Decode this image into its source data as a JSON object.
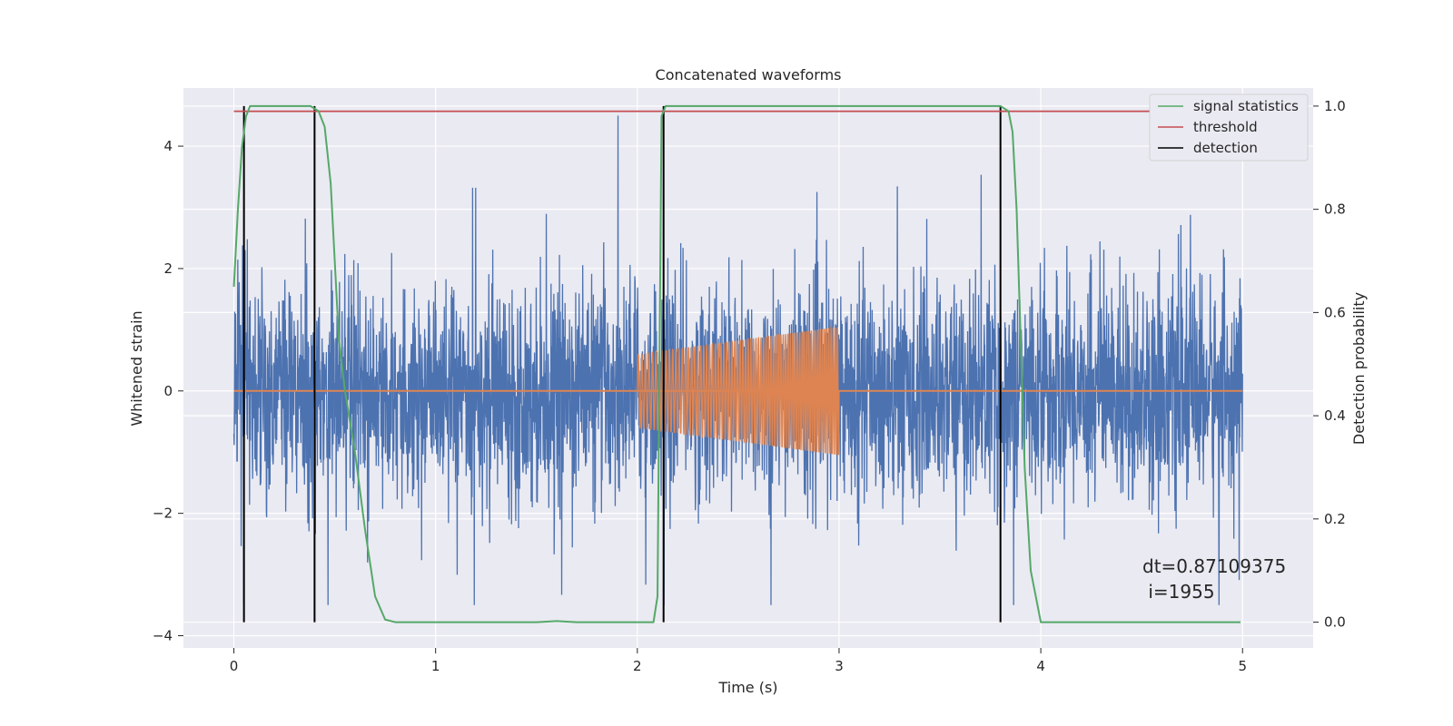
{
  "chart_data": {
    "type": "line",
    "title": "Concatenated waveforms",
    "xlabel": "Time (s)",
    "ylabel_left": "Whitened strain",
    "ylabel_right": "Detection probability",
    "xlim": [
      -0.25,
      5.35
    ],
    "ylim_left": [
      -4.2,
      4.95
    ],
    "ylim_right": [
      -0.05,
      1.035
    ],
    "x_ticks": [
      0,
      1,
      2,
      3,
      4,
      5
    ],
    "x_tick_labels": [
      "0",
      "1",
      "2",
      "3",
      "4",
      "5"
    ],
    "y_left_ticks": [
      -4,
      -2,
      0,
      2,
      4
    ],
    "y_left_tick_labels": [
      "−4",
      "−2",
      "0",
      "2",
      "4"
    ],
    "y_right_ticks": [
      0.0,
      0.2,
      0.4,
      0.6,
      0.8,
      1.0
    ],
    "y_right_tick_labels": [
      "0.0",
      "0.2",
      "0.4",
      "0.6",
      "0.8",
      "1.0"
    ],
    "grid": true,
    "legend_position": "top-right",
    "colors": {
      "plot_background": "#eaeaf2",
      "grid": "#ffffff",
      "strain": "#4c72b0",
      "injected_signal": "#dd8452",
      "signal_statistics": "#55a868",
      "threshold": "#c44e52",
      "detection": "#000000"
    },
    "series": [
      {
        "name": "",
        "role": "whitened_strain",
        "axis": "left",
        "x_range": [
          0.0,
          5.0
        ],
        "amplitude_range": [
          -3.5,
          4.5
        ]
      },
      {
        "name": "",
        "role": "injected_chirp",
        "axis": "left",
        "x_range": [
          2.0,
          3.0
        ],
        "amplitude_start": 0.6,
        "amplitude_end": 1.05
      },
      {
        "name": "signal statistics",
        "axis": "right",
        "x": [
          0.0,
          0.02,
          0.04,
          0.06,
          0.08,
          0.12,
          0.2,
          0.3,
          0.38,
          0.42,
          0.45,
          0.48,
          0.5,
          0.52,
          0.55,
          0.6,
          0.65,
          0.7,
          0.75,
          0.8,
          1.0,
          1.5,
          1.6,
          1.7,
          2.0,
          2.08,
          2.1,
          2.12,
          2.14,
          2.2,
          2.5,
          3.0,
          3.5,
          3.8,
          3.84,
          3.86,
          3.88,
          3.9,
          3.92,
          3.95,
          4.0,
          4.5,
          4.99
        ],
        "y": [
          0.65,
          0.8,
          0.92,
          0.98,
          1.0,
          1.0,
          1.0,
          1.0,
          1.0,
          0.99,
          0.96,
          0.85,
          0.7,
          0.55,
          0.45,
          0.33,
          0.18,
          0.05,
          0.005,
          0.0,
          0.0,
          0.0,
          0.002,
          0.0,
          0.0,
          0.0,
          0.05,
          0.98,
          1.0,
          1.0,
          1.0,
          1.0,
          1.0,
          1.0,
          0.99,
          0.95,
          0.8,
          0.55,
          0.3,
          0.1,
          0.0,
          0.0,
          0.0
        ]
      },
      {
        "name": "threshold",
        "axis": "right",
        "x": [
          0.0,
          5.0
        ],
        "y": [
          0.99,
          0.99
        ]
      },
      {
        "name": "detection",
        "axis": "right",
        "type": "vlines",
        "x": [
          0.05,
          0.4,
          2.13,
          3.8
        ],
        "y_range": [
          0.0,
          1.0
        ]
      }
    ],
    "annotations": [
      {
        "lines": [
          "dt=0.87109375",
          " i=1955"
        ]
      }
    ]
  }
}
